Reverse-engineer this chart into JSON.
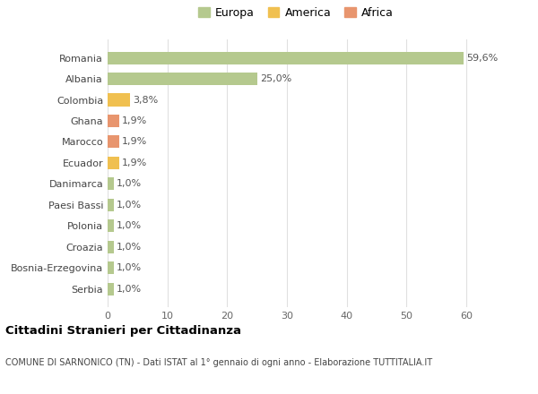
{
  "categories": [
    "Romania",
    "Albania",
    "Colombia",
    "Ghana",
    "Marocco",
    "Ecuador",
    "Danimarca",
    "Paesi Bassi",
    "Polonia",
    "Croazia",
    "Bosnia-Erzegovina",
    "Serbia"
  ],
  "values": [
    59.6,
    25.0,
    3.8,
    1.9,
    1.9,
    1.9,
    1.0,
    1.0,
    1.0,
    1.0,
    1.0,
    1.0
  ],
  "labels": [
    "59,6%",
    "25,0%",
    "3,8%",
    "1,9%",
    "1,9%",
    "1,9%",
    "1,0%",
    "1,0%",
    "1,0%",
    "1,0%",
    "1,0%",
    "1,0%"
  ],
  "colors": [
    "#b5c98e",
    "#b5c98e",
    "#f0c050",
    "#e8956e",
    "#e8956e",
    "#f0c050",
    "#b5c98e",
    "#b5c98e",
    "#b5c98e",
    "#b5c98e",
    "#b5c98e",
    "#b5c98e"
  ],
  "legend_labels": [
    "Europa",
    "America",
    "Africa"
  ],
  "legend_colors": [
    "#b5c98e",
    "#f0c050",
    "#e8956e"
  ],
  "title": "Cittadini Stranieri per Cittadinanza",
  "subtitle": "COMUNE DI SARNONICO (TN) - Dati ISTAT al 1° gennaio di ogni anno - Elaborazione TUTTITALIA.IT",
  "xlim": [
    0,
    63
  ],
  "xticks": [
    0,
    10,
    20,
    30,
    40,
    50,
    60
  ],
  "background_color": "#ffffff",
  "grid_color": "#e0e0e0"
}
